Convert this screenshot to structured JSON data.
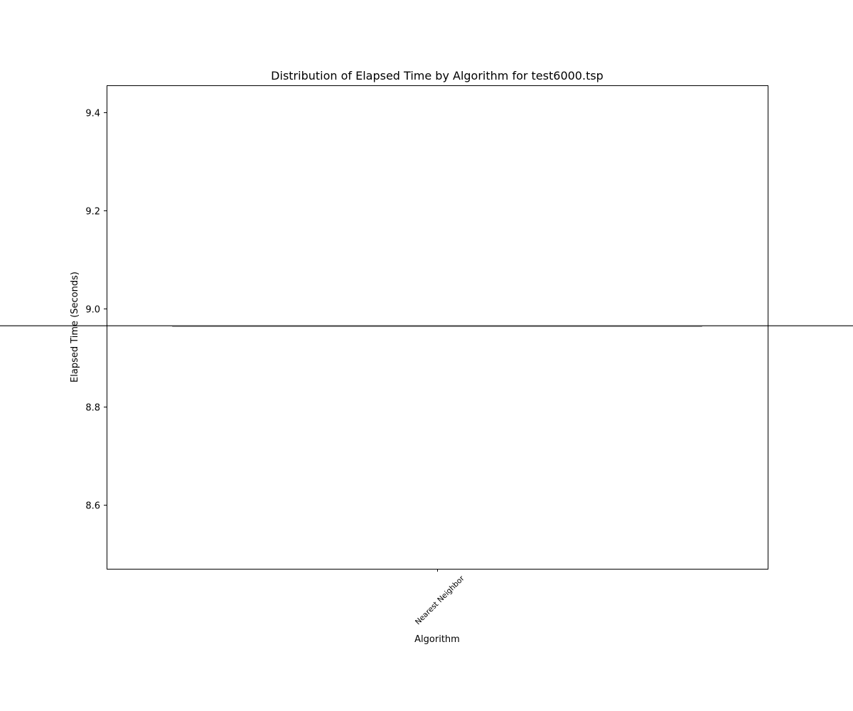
{
  "chart_data": {
    "type": "box",
    "title": "Distribution of Elapsed Time by Algorithm for test6000.tsp",
    "xlabel": "Algorithm",
    "ylabel": "Elapsed Time (Seconds)",
    "categories": [
      "Nearest Neighbor"
    ],
    "ylim": [
      8.47,
      9.455
    ],
    "yticks": [
      "8.6",
      "8.8",
      "9.0",
      "9.2",
      "9.4"
    ],
    "series": [
      {
        "values": [
          {
            "min": 8.965,
            "q1": 8.965,
            "median": 8.965,
            "q3": 8.965,
            "max": 8.965
          }
        ]
      }
    ],
    "grid": false,
    "legend": "none",
    "colors": {
      "box_line": "#3f3f3f",
      "axes": "#000000"
    }
  }
}
